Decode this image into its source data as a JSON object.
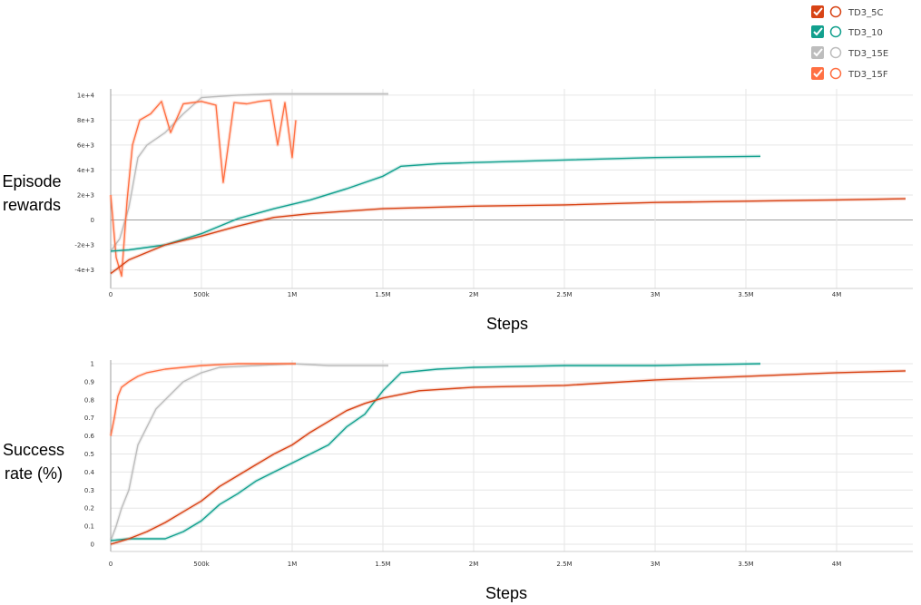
{
  "legend": [
    {
      "name": "TD3_5C",
      "color": "#d84315",
      "checked": true
    },
    {
      "name": "TD3_10",
      "color": "#12a08e",
      "checked": true
    },
    {
      "name": "TD3_15E",
      "color": "#bdbdbd",
      "checked": true
    },
    {
      "name": "TD3_15F",
      "color": "#ff7043",
      "checked": true
    }
  ],
  "chart_data": [
    {
      "type": "line",
      "ylabel_lines": [
        "Episode",
        "rewards"
      ],
      "xlabel": "Steps",
      "xlim": [
        0,
        4420000
      ],
      "ylim": [
        -5200,
        10500
      ],
      "x_ticks": [
        0,
        500000,
        1000000,
        1500000,
        2000000,
        2500000,
        3000000,
        3500000,
        4000000
      ],
      "x_tick_labels": [
        "0",
        "500k",
        "1M",
        "1.5M",
        "2M",
        "2.5M",
        "3M",
        "3.5M",
        "4M"
      ],
      "y_ticks": [
        -4000,
        -2000,
        0,
        2000,
        4000,
        6000,
        8000,
        10000
      ],
      "y_tick_labels": [
        "-4e+3",
        "-2e+3",
        "0",
        "2e+3",
        "4e+3",
        "6e+3",
        "8e+3",
        "1e+4"
      ],
      "grid": true,
      "series": [
        {
          "name": "TD3_15E",
          "color": "#bdbdbd",
          "x": [
            0,
            50000,
            100000,
            150000,
            200000,
            300000,
            400000,
            500000,
            700000,
            900000,
            1100000,
            1300000,
            1530000
          ],
          "y": [
            -2500,
            -1500,
            1000,
            5000,
            6000,
            7000,
            8500,
            9800,
            10000,
            10100,
            10100,
            10100,
            10100
          ]
        },
        {
          "name": "TD3_15F",
          "color": "#ff7043",
          "x": [
            0,
            30000,
            60000,
            90000,
            120000,
            160000,
            220000,
            280000,
            330000,
            400000,
            500000,
            580000,
            620000,
            680000,
            750000,
            820000,
            880000,
            920000,
            960000,
            1000000,
            1020000
          ],
          "y": [
            2000,
            -3000,
            -4500,
            1500,
            6000,
            8000,
            8500,
            9500,
            7000,
            9300,
            9500,
            9200,
            3000,
            9400,
            9300,
            9500,
            9600,
            6000,
            9400,
            5000,
            8000
          ]
        },
        {
          "name": "TD3_10",
          "color": "#12a08e",
          "x": [
            0,
            100000,
            300000,
            500000,
            700000,
            900000,
            1100000,
            1300000,
            1500000,
            1600000,
            1800000,
            2000000,
            2500000,
            3000000,
            3580000
          ],
          "y": [
            -2500,
            -2400,
            -2000,
            -1100,
            100,
            900,
            1600,
            2500,
            3500,
            4300,
            4500,
            4600,
            4800,
            5000,
            5100
          ]
        },
        {
          "name": "TD3_5C",
          "color": "#d84315",
          "x": [
            0,
            100000,
            300000,
            500000,
            700000,
            900000,
            1100000,
            1300000,
            1500000,
            2000000,
            2500000,
            3000000,
            3500000,
            4000000,
            4380000
          ],
          "y": [
            -4300,
            -3200,
            -2000,
            -1300,
            -500,
            200,
            500,
            700,
            900,
            1100,
            1200,
            1400,
            1500,
            1600,
            1700
          ]
        }
      ]
    },
    {
      "type": "line",
      "ylabel_lines": [
        "Success",
        "rate (%)"
      ],
      "xlabel": "Steps",
      "xlim": [
        0,
        4420000
      ],
      "ylim": [
        -0.02,
        1.02
      ],
      "x_ticks": [
        0,
        500000,
        1000000,
        1500000,
        2000000,
        2500000,
        3000000,
        3500000,
        4000000
      ],
      "x_tick_labels": [
        "0",
        "500k",
        "1M",
        "1.5M",
        "2M",
        "2.5M",
        "3M",
        "3.5M",
        "4M"
      ],
      "y_ticks": [
        0,
        0.1,
        0.2,
        0.3,
        0.4,
        0.5,
        0.6,
        0.7,
        0.8,
        0.9,
        1.0
      ],
      "y_tick_labels": [
        "0",
        "0.1",
        "0.2",
        "0.3",
        "0.4",
        "0.5",
        "0.6",
        "0.7",
        "0.8",
        "0.9",
        "1"
      ],
      "grid": true,
      "series": [
        {
          "name": "TD3_15E",
          "color": "#bdbdbd",
          "x": [
            0,
            30000,
            60000,
            100000,
            150000,
            200000,
            250000,
            300000,
            400000,
            500000,
            600000,
            800000,
            1000000,
            1200000,
            1530000
          ],
          "y": [
            0.02,
            0.1,
            0.2,
            0.3,
            0.55,
            0.65,
            0.75,
            0.8,
            0.9,
            0.95,
            0.98,
            0.99,
            1.0,
            0.99,
            0.99
          ]
        },
        {
          "name": "TD3_15F",
          "color": "#ff7043",
          "x": [
            0,
            20000,
            40000,
            60000,
            100000,
            150000,
            200000,
            300000,
            400000,
            500000,
            700000,
            900000,
            1020000
          ],
          "y": [
            0.6,
            0.7,
            0.82,
            0.87,
            0.9,
            0.93,
            0.95,
            0.97,
            0.98,
            0.99,
            1.0,
            1.0,
            1.0
          ]
        },
        {
          "name": "TD3_10",
          "color": "#12a08e",
          "x": [
            0,
            100000,
            200000,
            300000,
            400000,
            500000,
            600000,
            700000,
            800000,
            900000,
            1000000,
            1100000,
            1200000,
            1300000,
            1400000,
            1500000,
            1600000,
            1800000,
            2000000,
            2500000,
            3000000,
            3580000
          ],
          "y": [
            0.02,
            0.03,
            0.03,
            0.03,
            0.07,
            0.13,
            0.22,
            0.28,
            0.35,
            0.4,
            0.45,
            0.5,
            0.55,
            0.65,
            0.72,
            0.85,
            0.95,
            0.97,
            0.98,
            0.99,
            0.99,
            1.0
          ]
        },
        {
          "name": "TD3_5C",
          "color": "#d84315",
          "x": [
            0,
            100000,
            200000,
            300000,
            400000,
            500000,
            600000,
            700000,
            800000,
            900000,
            1000000,
            1100000,
            1200000,
            1300000,
            1400000,
            1500000,
            1700000,
            2000000,
            2500000,
            3000000,
            3500000,
            4000000,
            4380000
          ],
          "y": [
            0.0,
            0.03,
            0.07,
            0.12,
            0.18,
            0.24,
            0.32,
            0.38,
            0.44,
            0.5,
            0.55,
            0.62,
            0.68,
            0.74,
            0.78,
            0.81,
            0.85,
            0.87,
            0.88,
            0.91,
            0.93,
            0.95,
            0.96
          ]
        }
      ]
    }
  ]
}
